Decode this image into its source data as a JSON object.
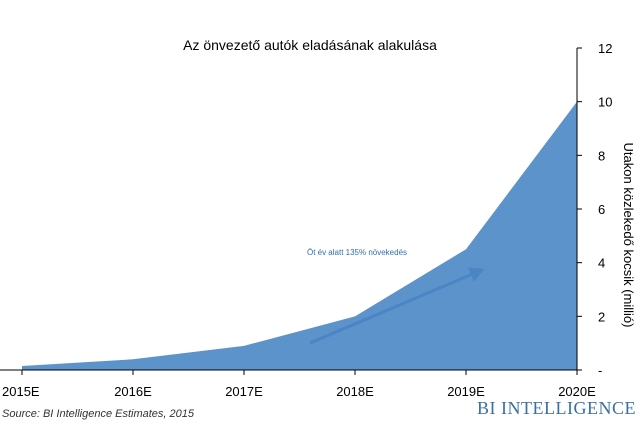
{
  "chart_data": {
    "type": "area",
    "title": "Az önvezető autók eladásának alakulása",
    "ylabel": "Utakon közlekedő kocsik (millió)",
    "categories": [
      "2015E",
      "2016E",
      "2017E",
      "2018E",
      "2019E",
      "2020E"
    ],
    "values": [
      0.15,
      0.4,
      0.9,
      2.0,
      4.5,
      10.0
    ],
    "ylim": [
      0,
      12
    ],
    "yticks": [
      0,
      2,
      4,
      6,
      8,
      10,
      12
    ],
    "ytick_labels": [
      "-",
      "2",
      "4",
      "6",
      "8",
      "10",
      "12"
    ],
    "y_axis_position": "right",
    "grid": false,
    "area_color": "#5b93ca",
    "annotation": {
      "text": "Öt év alatt 135% növekedés",
      "color": "#2f6fb3"
    }
  },
  "footer": {
    "source": "Source: BI Intelligence Estimates, 2015",
    "brand": "BI INTELLIGENCE",
    "brand_color": "#3a6ea8"
  }
}
